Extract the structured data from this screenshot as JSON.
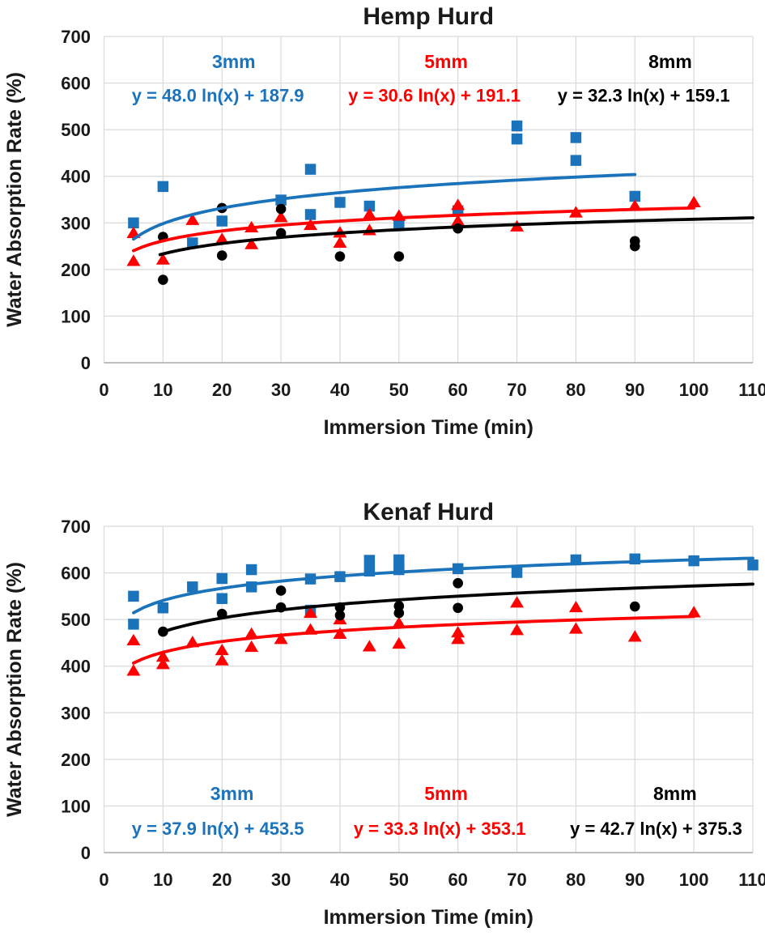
{
  "page_background": "#ffffff",
  "text_color": "#1a1a1a",
  "grid_color": "#d9d9d9",
  "axis_line_color": "#ababab",
  "chart_data": [
    {
      "type": "scatter",
      "title": "Hemp Hurd",
      "xlabel": "Immersion Time (min)",
      "ylabel": "Water Absorption Rate (%)",
      "xlim": [
        0,
        110
      ],
      "ylim": [
        0,
        700
      ],
      "xticks": [
        0,
        10,
        20,
        30,
        40,
        50,
        60,
        70,
        80,
        90,
        100,
        110
      ],
      "yticks": [
        0,
        100,
        200,
        300,
        400,
        500,
        600,
        700
      ],
      "grid": true,
      "legend_position": "inline-annotations",
      "series": [
        {
          "name": "3mm",
          "marker": "square",
          "color": "#1b74bb",
          "equation": "y = 48.0 ln(x) + 187.9",
          "trend": {
            "type": "log",
            "a": 48.0,
            "b": 187.9,
            "x_start": 5,
            "x_end": 90
          },
          "label_pos": [
            22,
            632
          ],
          "eq_pos": [
            19.3,
            560
          ],
          "points": [
            [
              5,
              300
            ],
            [
              10,
              378
            ],
            [
              15,
              257
            ],
            [
              20,
              304
            ],
            [
              30,
              349
            ],
            [
              35,
              415
            ],
            [
              35,
              318
            ],
            [
              40,
              344
            ],
            [
              45,
              336
            ],
            [
              50,
              300
            ],
            [
              60,
              326
            ],
            [
              70,
              508
            ],
            [
              70,
              480
            ],
            [
              80,
              483
            ],
            [
              80,
              434
            ],
            [
              90,
              357
            ]
          ]
        },
        {
          "name": "5mm",
          "marker": "triangle",
          "color": "#fe0000",
          "equation": "y = 30.6 ln(x) + 191.1",
          "trend": {
            "type": "log",
            "a": 30.6,
            "b": 191.1,
            "x_start": 5,
            "x_end": 100
          },
          "label_pos": [
            58,
            632
          ],
          "eq_pos": [
            56,
            560
          ],
          "points": [
            [
              5,
              278
            ],
            [
              5,
              218
            ],
            [
              10,
              221
            ],
            [
              15,
              306
            ],
            [
              20,
              265
            ],
            [
              25,
              290
            ],
            [
              25,
              254
            ],
            [
              30,
              312
            ],
            [
              35,
              295
            ],
            [
              40,
              279
            ],
            [
              40,
              257
            ],
            [
              45,
              318
            ],
            [
              45,
              284
            ],
            [
              50,
              315
            ],
            [
              60,
              338
            ],
            [
              60,
              304
            ],
            [
              70,
              292
            ],
            [
              80,
              322
            ],
            [
              90,
              336
            ],
            [
              100,
              344
            ]
          ]
        },
        {
          "name": "8mm",
          "marker": "circle",
          "color": "#000000",
          "equation": "y = 32.3 ln(x) + 159.1",
          "trend": {
            "type": "log",
            "a": 32.3,
            "b": 159.1,
            "x_start": 9.5,
            "x_end": 110
          },
          "label_pos": [
            96,
            632
          ],
          "eq_pos": [
            91.5,
            560
          ],
          "points": [
            [
              10,
              270
            ],
            [
              10,
              178
            ],
            [
              20,
              332
            ],
            [
              20,
              230
            ],
            [
              30,
              330
            ],
            [
              30,
              278
            ],
            [
              40,
              228
            ],
            [
              50,
              228
            ],
            [
              60,
              288
            ],
            [
              90,
              261
            ],
            [
              90,
              250
            ]
          ]
        }
      ]
    },
    {
      "type": "scatter",
      "title": "Kenaf Hurd",
      "xlabel": "Immersion Time (min)",
      "ylabel": "Water Absorption Rate (%)",
      "xlim": [
        0,
        110
      ],
      "ylim": [
        0,
        700
      ],
      "xticks": [
        0,
        10,
        20,
        30,
        40,
        50,
        60,
        70,
        80,
        90,
        100,
        110
      ],
      "yticks": [
        0,
        100,
        200,
        300,
        400,
        500,
        600,
        700
      ],
      "grid": true,
      "legend_position": "inline-annotations",
      "series": [
        {
          "name": "3mm",
          "marker": "square",
          "color": "#1b74bb",
          "equation": "y = 37.9 ln(x) + 453.5",
          "trend": {
            "type": "log",
            "a": 37.9,
            "b": 453.5,
            "x_start": 5,
            "x_end": 110
          },
          "label_pos": [
            21.7,
            113
          ],
          "eq_pos": [
            19.3,
            38
          ],
          "points": [
            [
              5,
              550
            ],
            [
              5,
              490
            ],
            [
              10,
              525
            ],
            [
              15,
              570
            ],
            [
              20,
              588
            ],
            [
              20,
              545
            ],
            [
              25,
              607
            ],
            [
              25,
              570
            ],
            [
              35,
              587
            ],
            [
              35,
              520
            ],
            [
              40,
              592
            ],
            [
              45,
              627
            ],
            [
              45,
              604
            ],
            [
              50,
              628
            ],
            [
              50,
              607
            ],
            [
              60,
              609
            ],
            [
              70,
              601
            ],
            [
              80,
              628
            ],
            [
              90,
              630
            ],
            [
              100,
              626
            ],
            [
              110,
              617
            ]
          ]
        },
        {
          "name": "5mm",
          "marker": "triangle",
          "color": "#fe0000",
          "equation": "y = 33.3 ln(x) + 353.1",
          "trend": {
            "type": "log",
            "a": 33.3,
            "b": 353.1,
            "x_start": 5,
            "x_end": 100
          },
          "label_pos": [
            58,
            113
          ],
          "eq_pos": [
            56.9,
            38
          ],
          "points": [
            [
              5,
              455
            ],
            [
              5,
              390
            ],
            [
              10,
              420
            ],
            [
              10,
              404
            ],
            [
              15,
              451
            ],
            [
              20,
              434
            ],
            [
              20,
              412
            ],
            [
              25,
              469
            ],
            [
              25,
              441
            ],
            [
              30,
              458
            ],
            [
              35,
              514
            ],
            [
              35,
              478
            ],
            [
              40,
              500
            ],
            [
              40,
              469
            ],
            [
              45,
              442
            ],
            [
              50,
              492
            ],
            [
              50,
              448
            ],
            [
              60,
              472
            ],
            [
              60,
              458
            ],
            [
              70,
              536
            ],
            [
              70,
              477
            ],
            [
              80,
              526
            ],
            [
              80,
              480
            ],
            [
              90,
              463
            ],
            [
              100,
              515
            ]
          ]
        },
        {
          "name": "8mm",
          "marker": "circle",
          "color": "#000000",
          "equation": "y = 42.7 ln(x) + 375.3",
          "trend": {
            "type": "log",
            "a": 42.7,
            "b": 375.3,
            "x_start": 10,
            "x_end": 110
          },
          "label_pos": [
            96.8,
            113
          ],
          "eq_pos": [
            93.6,
            38
          ],
          "points": [
            [
              10,
              474
            ],
            [
              20,
              512
            ],
            [
              30,
              562
            ],
            [
              30,
              526
            ],
            [
              40,
              526
            ],
            [
              40,
              509
            ],
            [
              50,
              529
            ],
            [
              50,
              514
            ],
            [
              60,
              578
            ],
            [
              60,
              525
            ],
            [
              90,
              528
            ]
          ]
        }
      ]
    }
  ]
}
